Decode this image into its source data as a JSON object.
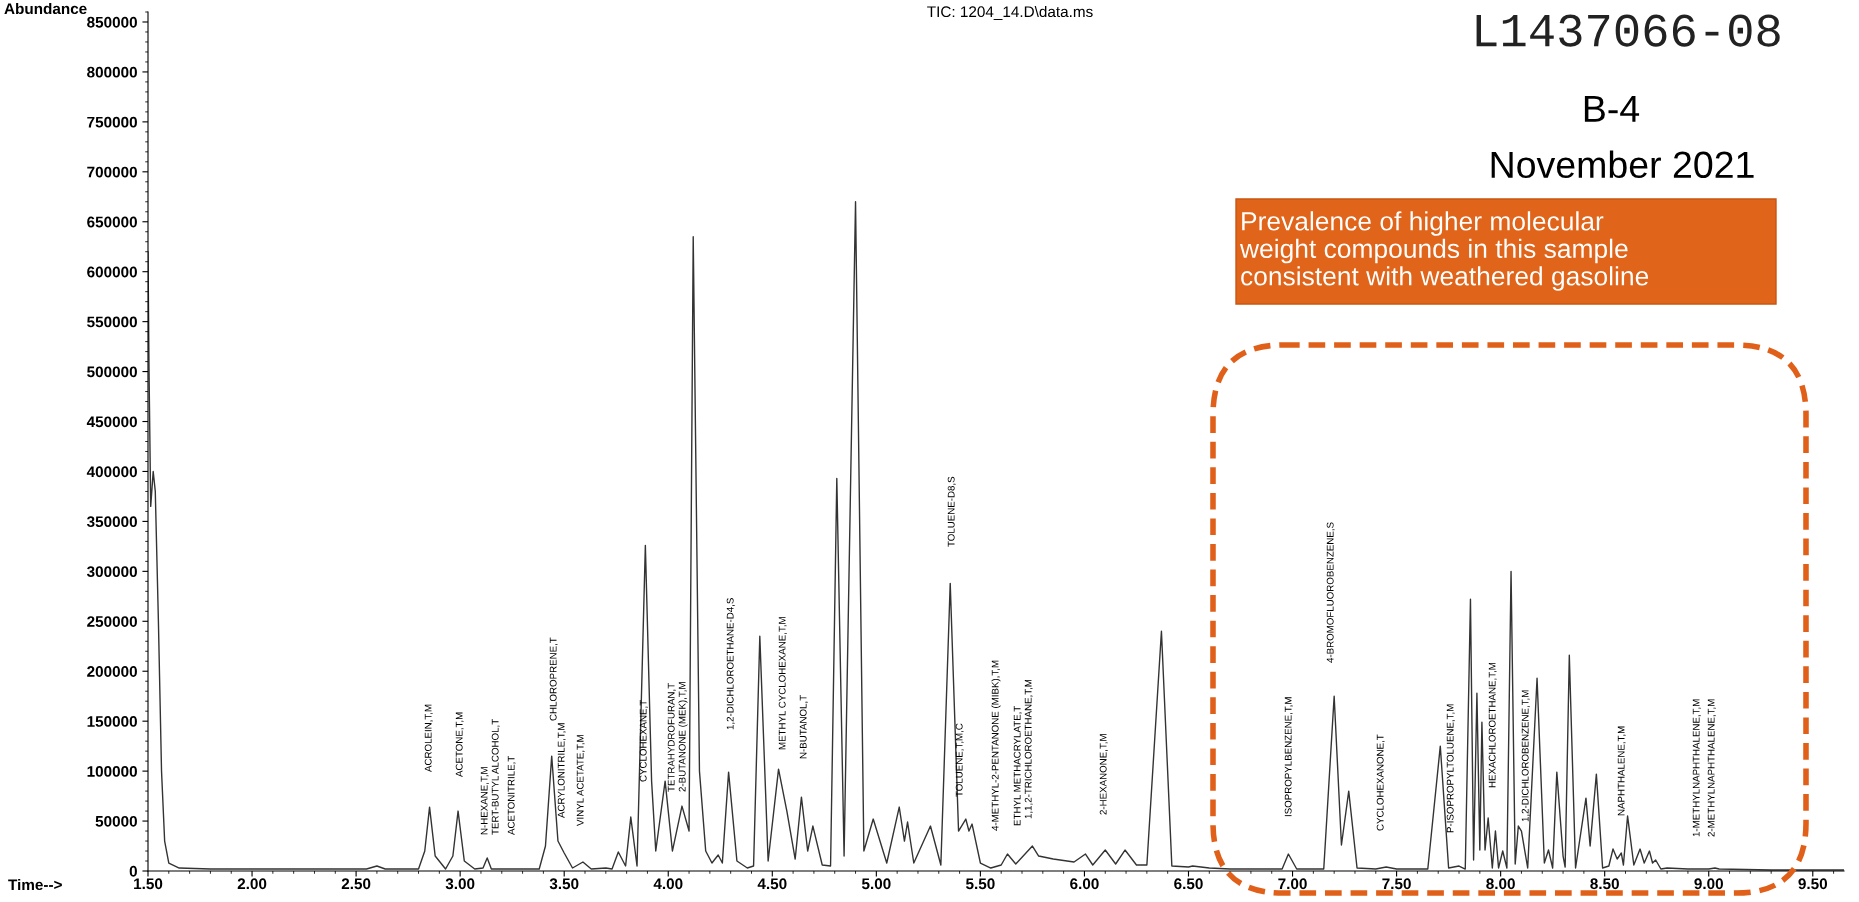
{
  "chart_data": {
    "type": "line",
    "title": "TIC: 1204_14.D\\data.ms",
    "xlabel": "Time-->",
    "ylabel": "Abundance",
    "xlim": [
      1.5,
      9.65
    ],
    "ylim": [
      0,
      860000
    ],
    "xticks": [
      {
        "value": 1.5,
        "label": "1.50"
      },
      {
        "value": 2.0,
        "label": "2.00"
      },
      {
        "value": 2.5,
        "label": "2.50"
      },
      {
        "value": 3.0,
        "label": "3.00"
      },
      {
        "value": 3.5,
        "label": "3.50"
      },
      {
        "value": 4.0,
        "label": "4.00"
      },
      {
        "value": 4.5,
        "label": "4.50"
      },
      {
        "value": 5.0,
        "label": "5.00"
      },
      {
        "value": 5.5,
        "label": "5.50"
      },
      {
        "value": 6.0,
        "label": "6.00"
      },
      {
        "value": 6.5,
        "label": "6.50"
      },
      {
        "value": 7.0,
        "label": "7.00"
      },
      {
        "value": 7.5,
        "label": "7.50"
      },
      {
        "value": 8.0,
        "label": "8.00"
      },
      {
        "value": 8.5,
        "label": "8.50"
      },
      {
        "value": 9.0,
        "label": "9.00"
      },
      {
        "value": 9.5,
        "label": "9.50"
      }
    ],
    "yticks": [
      0,
      50000,
      100000,
      150000,
      200000,
      250000,
      300000,
      350000,
      400000,
      450000,
      500000,
      550000,
      600000,
      650000,
      700000,
      750000,
      800000,
      850000
    ],
    "x": [
      1.5,
      1.505,
      1.513,
      1.525,
      1.535,
      1.55,
      1.565,
      1.58,
      1.6,
      1.65,
      1.8,
      2.0,
      2.2,
      2.4,
      2.55,
      2.6,
      2.64,
      2.8,
      2.83,
      2.853,
      2.88,
      2.93,
      2.965,
      2.99,
      3.02,
      3.07,
      3.11,
      3.13,
      3.15,
      3.3,
      3.38,
      3.41,
      3.44,
      3.47,
      3.5,
      3.54,
      3.59,
      3.63,
      3.7,
      3.73,
      3.76,
      3.795,
      3.82,
      3.85,
      3.89,
      3.92,
      3.94,
      3.985,
      4.02,
      4.066,
      4.1,
      4.12,
      4.15,
      4.18,
      4.21,
      4.24,
      4.26,
      4.29,
      4.33,
      4.38,
      4.41,
      4.44,
      4.48,
      4.53,
      4.57,
      4.61,
      4.64,
      4.67,
      4.695,
      4.74,
      4.78,
      4.81,
      4.845,
      4.9,
      4.94,
      4.985,
      5.05,
      5.11,
      5.135,
      5.15,
      5.18,
      5.26,
      5.31,
      5.355,
      5.395,
      5.43,
      5.445,
      5.46,
      5.5,
      5.55,
      5.6,
      5.63,
      5.67,
      5.75,
      5.78,
      5.85,
      5.95,
      6.005,
      6.04,
      6.1,
      6.15,
      6.195,
      6.25,
      6.3,
      6.37,
      6.42,
      6.5,
      6.52,
      6.6,
      6.7,
      6.8,
      6.95,
      6.98,
      7.02,
      7.15,
      7.2,
      7.235,
      7.27,
      7.31,
      7.4,
      7.45,
      7.5,
      7.65,
      7.71,
      7.75,
      7.8,
      7.83,
      7.855,
      7.87,
      7.886,
      7.9,
      7.91,
      7.925,
      7.94,
      7.96,
      7.975,
      7.99,
      8.01,
      8.03,
      8.05,
      8.07,
      8.085,
      8.1,
      8.13,
      8.175,
      8.21,
      8.23,
      8.25,
      8.27,
      8.3,
      8.31,
      8.33,
      8.36,
      8.41,
      8.43,
      8.46,
      8.49,
      8.52,
      8.54,
      8.56,
      8.58,
      8.59,
      8.61,
      8.64,
      8.67,
      8.69,
      8.715,
      8.73,
      8.745,
      8.77,
      8.8,
      8.9,
      9.0,
      9.03,
      9.05,
      9.3,
      9.65
    ],
    "series": [
      {
        "color": "#333333",
        "values": [
          620000,
          500000,
          365000,
          400000,
          380000,
          250000,
          100000,
          30000,
          8000,
          3000,
          2000,
          2000,
          2000,
          2000,
          2000,
          5000,
          2000,
          2000,
          20000,
          64000,
          15000,
          2000,
          15000,
          60000,
          10000,
          2000,
          3000,
          13000,
          2000,
          2000,
          2000,
          25000,
          115000,
          30000,
          18000,
          3000,
          9000,
          2000,
          3000,
          2000,
          19000,
          5000,
          54000,
          5000,
          326000,
          90000,
          20000,
          90000,
          20000,
          65000,
          40000,
          635000,
          100000,
          20000,
          8000,
          16000,
          8000,
          99000,
          10000,
          3000,
          5000,
          235000,
          10000,
          102000,
          60000,
          12000,
          74000,
          20000,
          45000,
          6000,
          5000,
          393000,
          15000,
          670000,
          20000,
          52000,
          8000,
          64000,
          30000,
          49000,
          8000,
          45000,
          6000,
          288000,
          40000,
          52000,
          40000,
          47000,
          8000,
          3000,
          6000,
          17000,
          7000,
          25000,
          15000,
          12000,
          9000,
          17000,
          6000,
          21000,
          7000,
          21000,
          6000,
          6000,
          240000,
          5000,
          4000,
          5000,
          3000,
          2000,
          2000,
          2000,
          17000,
          2000,
          2000,
          175000,
          26000,
          80000,
          3000,
          2000,
          4000,
          2000,
          2000,
          125000,
          3000,
          5000,
          2000,
          272000,
          11000,
          178000,
          21000,
          149000,
          21000,
          53000,
          3000,
          40000,
          3000,
          20000,
          3000,
          300000,
          7000,
          45000,
          40000,
          3000,
          193000,
          8000,
          21000,
          3000,
          99000,
          15000,
          4000,
          216000,
          3000,
          73000,
          25000,
          97000,
          3000,
          5000,
          22000,
          12000,
          18000,
          6000,
          55000,
          6000,
          22000,
          8000,
          20000,
          8000,
          11000,
          2000,
          3000,
          2000,
          2000,
          3000,
          2000,
          1000,
          1000
        ]
      }
    ],
    "annotations": [
      "L1437066-08",
      "B-4",
      "November 2021",
      "Prevalence of higher molecular\nweight compounds in this sample\nconsistent with weathered gasoline",
      "ACROLEIN,T,M",
      "ACETONE,T,M",
      "N-HEXANE,T,M",
      "TERT-BUTYL ALCOHOL,T",
      "ACETONITRILE,T",
      "CHLOROPRENE,T",
      "ACRYLONITRILE,T,M",
      "VINYL ACETATE,T,M",
      "CYCLOHEXANE,T",
      "TETRAHYDROFURAN,T",
      "2-BUTANONE (MEK),T,M",
      "1,2-DICHLOROETHANE-D4,S",
      "METHYL CYCLOHEXANE,T,M",
      "N-BUTANOL,T",
      "TOLUENE-D8,S",
      "TOLUENE,T,M,C",
      "4-METHYL-2-PENTANONE (MIBK),T,M",
      "ETHYL METHACRYLATE,T",
      "1,1,2-TRICHLOROETHANE,T,M",
      "2-HEXANONE,T,M",
      "ISOPROPYLBENZENE,T,M",
      "4-BROMOFLUOROBENZENE,S",
      "CYCLOHEXANONE,T",
      "P-ISOPROPYLTOLUENE,T,M",
      "HEXACHLOROETHANE,T,M",
      "1,2-DICHLOROBENZENE,T,M",
      "NAPHTHALENE,T,M",
      "1-METHYLNAPHTHALENE,T,M",
      "2-METHYLNAPHTHALENE,T,M"
    ]
  }
}
